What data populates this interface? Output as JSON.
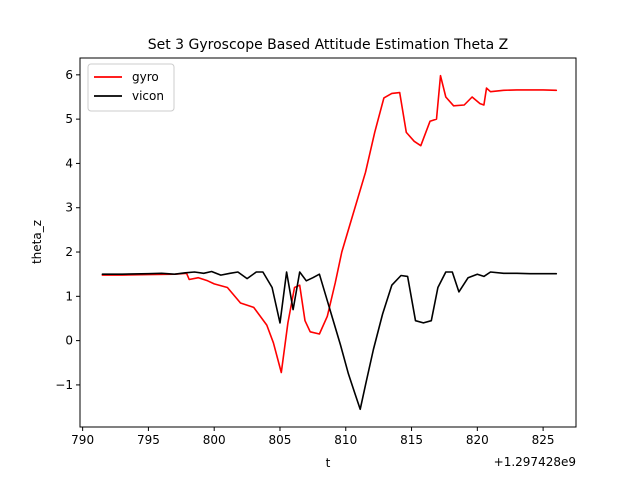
{
  "chart_data": {
    "type": "line",
    "title": "Set 3 Gyroscope Based Attitude Estimation Theta Z",
    "xlabel": "t",
    "ylabel": "theta_z",
    "x_offset_label": "+1.297428e9",
    "xlim": [
      789.8,
      827.5
    ],
    "ylim": [
      -1.95,
      6.38
    ],
    "x_ticks": [
      790,
      795,
      800,
      805,
      810,
      815,
      820,
      825
    ],
    "x_tick_labels": [
      "790",
      "795",
      "800",
      "805",
      "810",
      "815",
      "820",
      "825"
    ],
    "y_ticks": [
      -1,
      0,
      1,
      2,
      3,
      4,
      5,
      6
    ],
    "y_tick_labels": [
      "−1",
      "0",
      "1",
      "2",
      "3",
      "4",
      "5",
      "6"
    ],
    "grid": false,
    "legend_position": "upper-left",
    "series": [
      {
        "name": "gyro",
        "color": "#ff0000",
        "x": [
          791.5,
          793,
          795,
          797,
          797.9,
          798.1,
          798.8,
          799.5,
          800,
          801,
          802,
          803,
          804,
          804.5,
          805.1,
          805.6,
          806.1,
          806.5,
          806.9,
          807.3,
          808,
          808.6,
          809.2,
          809.7,
          810.3,
          810.9,
          811.5,
          812.2,
          812.9,
          813.5,
          814.1,
          814.6,
          815.2,
          815.7,
          816.4,
          816.9,
          817.2,
          817.6,
          818.2,
          819,
          819.6,
          820.2,
          820.5,
          820.7,
          821,
          822,
          823,
          824,
          825,
          826
        ],
        "y": [
          1.48,
          1.48,
          1.49,
          1.5,
          1.52,
          1.38,
          1.42,
          1.35,
          1.28,
          1.2,
          0.85,
          0.75,
          0.35,
          -0.05,
          -0.72,
          0.4,
          1.2,
          1.25,
          0.45,
          0.2,
          0.15,
          0.55,
          1.3,
          2.0,
          2.6,
          3.2,
          3.8,
          4.7,
          5.48,
          5.58,
          5.6,
          4.7,
          4.5,
          4.4,
          4.95,
          5.0,
          5.98,
          5.5,
          5.3,
          5.32,
          5.5,
          5.35,
          5.32,
          5.7,
          5.62,
          5.65,
          5.66,
          5.66,
          5.66,
          5.65
        ]
      },
      {
        "name": "vicon",
        "color": "#000000",
        "x": [
          791.5,
          793,
          795,
          796,
          797,
          797.8,
          798.5,
          799.2,
          799.8,
          800.5,
          801.2,
          801.8,
          802.5,
          803.2,
          803.7,
          804.4,
          805,
          805.5,
          806,
          806.5,
          807,
          807.5,
          808,
          808.5,
          809,
          809.6,
          810.2,
          810.7,
          811.1,
          811.5,
          812.1,
          812.8,
          813.5,
          814.2,
          814.7,
          815.3,
          815.9,
          816.5,
          817,
          817.6,
          818.1,
          818.6,
          819.3,
          820,
          820.5,
          821,
          822,
          823,
          824,
          825,
          826
        ],
        "y": [
          1.5,
          1.5,
          1.51,
          1.52,
          1.5,
          1.53,
          1.55,
          1.52,
          1.56,
          1.48,
          1.52,
          1.55,
          1.4,
          1.55,
          1.55,
          1.2,
          0.4,
          1.55,
          0.7,
          1.55,
          1.35,
          1.42,
          1.5,
          1.0,
          0.5,
          -0.1,
          -0.75,
          -1.2,
          -1.55,
          -1.0,
          -0.2,
          0.6,
          1.25,
          1.47,
          1.45,
          0.45,
          0.4,
          0.45,
          1.2,
          1.55,
          1.55,
          1.1,
          1.42,
          1.5,
          1.45,
          1.55,
          1.52,
          1.52,
          1.51,
          1.51,
          1.51
        ]
      }
    ]
  }
}
